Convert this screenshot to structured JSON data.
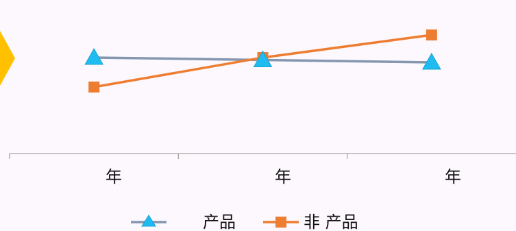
{
  "chart_data": {
    "type": "line",
    "categories": [
      "年",
      "年",
      "年"
    ],
    "series": [
      {
        "name": "产品",
        "values": [
          84,
          87.5,
          91
        ],
        "color": "#8496b0",
        "marker": "triangle",
        "marker_color": "#1ebcf0"
      },
      {
        "name": "非 产品",
        "values": [
          127,
          84,
          51
        ],
        "color": "#ed7d31",
        "marker": "square",
        "marker_color": "#ed7d31"
      }
    ],
    "title": "",
    "xlabel": "",
    "ylabel": "",
    "ylim": [
      0,
      224
    ],
    "ylim_inverted": true,
    "grid": false,
    "legend_position": "bottom"
  },
  "decor": {
    "arrow_color": "#ffc000",
    "axis_color": "#a6a6a6",
    "background": "#fdf8fd"
  }
}
